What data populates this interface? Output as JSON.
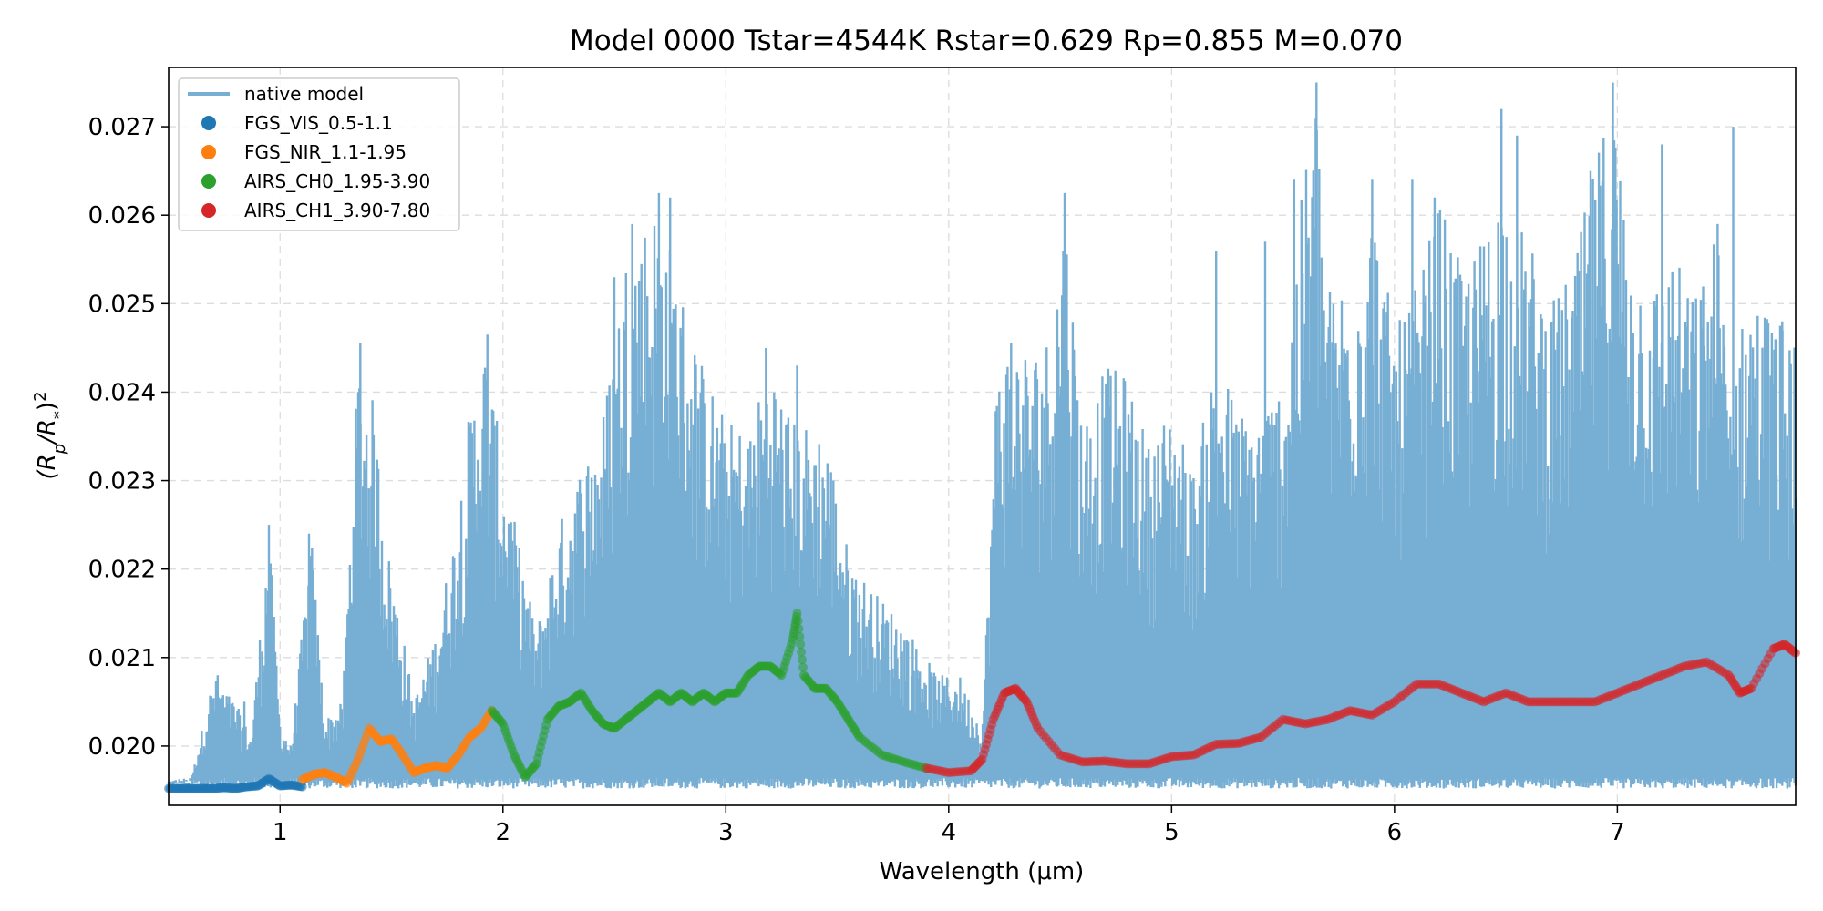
{
  "chart_data": {
    "type": "line+scatter",
    "title": "Model 0000  Tstar=4544K Rstar=0.629 Rp=0.855 M=0.070",
    "xlabel": "Wavelength (μm)",
    "ylabel_parts": {
      "base": "(R",
      "sub1": "p",
      "mid": "/R",
      "sub2": "*",
      "close": ")",
      "sup": "2"
    },
    "xlim": [
      0.5,
      7.8
    ],
    "ylim": [
      0.01933,
      0.02767
    ],
    "xticks": [
      1,
      2,
      3,
      4,
      5,
      6,
      7
    ],
    "xtick_labels": [
      "1",
      "2",
      "3",
      "4",
      "5",
      "6",
      "7"
    ],
    "yticks": [
      0.02,
      0.021,
      0.022,
      0.023,
      0.024,
      0.025,
      0.026,
      0.027
    ],
    "ytick_labels": [
      "0.020",
      "0.021",
      "0.022",
      "0.023",
      "0.024",
      "0.025",
      "0.026",
      "0.027"
    ],
    "grid": true,
    "legend_position": "top-left",
    "native_model": {
      "name": "native model",
      "color": "#77aed4",
      "baseline": 0.01955,
      "envelope": [
        [
          0.5,
          0.01955
        ],
        [
          0.6,
          0.0196
        ],
        [
          0.7,
          0.0208
        ],
        [
          0.8,
          0.0205
        ],
        [
          0.87,
          0.0201
        ],
        [
          0.95,
          0.0225
        ],
        [
          1.0,
          0.0203
        ],
        [
          1.05,
          0.02
        ],
        [
          1.14,
          0.0224
        ],
        [
          1.2,
          0.0203
        ],
        [
          1.28,
          0.0205
        ],
        [
          1.35,
          0.0244
        ],
        [
          1.42,
          0.0239
        ],
        [
          1.48,
          0.0223
        ],
        [
          1.55,
          0.0213
        ],
        [
          1.6,
          0.0205
        ],
        [
          1.7,
          0.0213
        ],
        [
          1.78,
          0.0224
        ],
        [
          1.85,
          0.0238
        ],
        [
          1.92,
          0.0246
        ],
        [
          2.0,
          0.0232
        ],
        [
          2.08,
          0.0222
        ],
        [
          2.15,
          0.0213
        ],
        [
          2.25,
          0.0225
        ],
        [
          2.35,
          0.0232
        ],
        [
          2.45,
          0.0238
        ],
        [
          2.55,
          0.0256
        ],
        [
          2.6,
          0.0259
        ],
        [
          2.7,
          0.0262
        ],
        [
          2.8,
          0.0252
        ],
        [
          2.9,
          0.0243
        ],
        [
          3.0,
          0.0237
        ],
        [
          3.1,
          0.0236
        ],
        [
          3.2,
          0.0244
        ],
        [
          3.3,
          0.0237
        ],
        [
          3.45,
          0.0236
        ],
        [
          3.55,
          0.0222
        ],
        [
          3.65,
          0.0218
        ],
        [
          3.8,
          0.0214
        ],
        [
          3.95,
          0.0208
        ],
        [
          4.05,
          0.0208
        ],
        [
          4.15,
          0.0202
        ],
        [
          4.22,
          0.0245
        ],
        [
          4.3,
          0.0246
        ],
        [
          4.38,
          0.0245
        ],
        [
          4.45,
          0.0247
        ],
        [
          4.52,
          0.0262
        ],
        [
          4.6,
          0.0237
        ],
        [
          4.7,
          0.0243
        ],
        [
          4.8,
          0.0242
        ],
        [
          4.9,
          0.0234
        ],
        [
          5.0,
          0.0239
        ],
        [
          5.1,
          0.0231
        ],
        [
          5.2,
          0.0245
        ],
        [
          5.3,
          0.0238
        ],
        [
          5.4,
          0.0238
        ],
        [
          5.5,
          0.0242
        ],
        [
          5.6,
          0.0266
        ],
        [
          5.65,
          0.0275
        ],
        [
          5.7,
          0.0252
        ],
        [
          5.8,
          0.0254
        ],
        [
          5.9,
          0.0262
        ],
        [
          6.0,
          0.0247
        ],
        [
          6.1,
          0.0252
        ],
        [
          6.2,
          0.0262
        ],
        [
          6.3,
          0.0254
        ],
        [
          6.4,
          0.0258
        ],
        [
          6.48,
          0.0265
        ],
        [
          6.55,
          0.0259
        ],
        [
          6.6,
          0.0258
        ],
        [
          6.7,
          0.025
        ],
        [
          6.8,
          0.0254
        ],
        [
          6.9,
          0.0266
        ],
        [
          6.98,
          0.0275
        ],
        [
          7.05,
          0.0258
        ],
        [
          7.15,
          0.0252
        ],
        [
          7.25,
          0.0256
        ],
        [
          7.35,
          0.0251
        ],
        [
          7.45,
          0.0259
        ],
        [
          7.5,
          0.0242
        ],
        [
          7.6,
          0.0252
        ],
        [
          7.7,
          0.0249
        ],
        [
          7.8,
          0.0247
        ]
      ],
      "spikes": [
        [
          0.72,
          0.0208
        ],
        [
          0.84,
          0.0205
        ],
        [
          0.95,
          0.0225
        ],
        [
          1.13,
          0.0224
        ],
        [
          1.36,
          0.02455
        ],
        [
          1.93,
          0.02465
        ],
        [
          2.5,
          0.0253
        ],
        [
          2.58,
          0.0259
        ],
        [
          2.7,
          0.02625
        ],
        [
          2.75,
          0.0262
        ],
        [
          3.18,
          0.0245
        ],
        [
          3.32,
          0.0243
        ],
        [
          4.28,
          0.02455
        ],
        [
          4.52,
          0.02625
        ],
        [
          5.2,
          0.0256
        ],
        [
          5.42,
          0.0257
        ],
        [
          5.55,
          0.0264
        ],
        [
          5.65,
          0.0275
        ],
        [
          5.9,
          0.0264
        ],
        [
          6.08,
          0.0264
        ],
        [
          6.18,
          0.0262
        ],
        [
          6.48,
          0.0272
        ],
        [
          6.55,
          0.0269
        ],
        [
          6.88,
          0.0265
        ],
        [
          6.98,
          0.0275
        ],
        [
          7.2,
          0.0268
        ],
        [
          7.45,
          0.0259
        ],
        [
          7.52,
          0.027
        ],
        [
          7.74,
          0.0248
        ]
      ]
    },
    "series": [
      {
        "name": "FGS_VIS_0.5-1.1",
        "color": "#1f77b4",
        "x": [
          0.5,
          0.55,
          0.6,
          0.65,
          0.7,
          0.75,
          0.8,
          0.85,
          0.9,
          0.95,
          1.0,
          1.05,
          1.1
        ],
        "y": [
          0.01952,
          0.01952,
          0.01952,
          0.01952,
          0.01952,
          0.01953,
          0.01952,
          0.01954,
          0.01955,
          0.01963,
          0.01955,
          0.01956,
          0.01954
        ]
      },
      {
        "name": "FGS_NIR_1.1-1.95",
        "color": "#ff7f0e",
        "x": [
          1.1,
          1.15,
          1.2,
          1.25,
          1.3,
          1.35,
          1.4,
          1.45,
          1.5,
          1.55,
          1.6,
          1.65,
          1.7,
          1.75,
          1.8,
          1.85,
          1.9,
          1.95
        ],
        "y": [
          0.01962,
          0.01968,
          0.0197,
          0.01965,
          0.01958,
          0.01985,
          0.0202,
          0.02005,
          0.02008,
          0.0199,
          0.0197,
          0.01975,
          0.01978,
          0.01975,
          0.0199,
          0.0201,
          0.0202,
          0.0204
        ]
      },
      {
        "name": "AIRS_CH0_1.95-3.90",
        "color": "#2ca02c",
        "x": [
          1.95,
          2.0,
          2.05,
          2.1,
          2.15,
          2.2,
          2.25,
          2.3,
          2.35,
          2.4,
          2.45,
          2.5,
          2.55,
          2.6,
          2.65,
          2.7,
          2.75,
          2.8,
          2.85,
          2.9,
          2.95,
          3.0,
          3.05,
          3.1,
          3.15,
          3.2,
          3.25,
          3.3,
          3.32,
          3.35,
          3.4,
          3.45,
          3.5,
          3.55,
          3.6,
          3.7,
          3.8,
          3.9
        ],
        "y": [
          0.0204,
          0.02025,
          0.0199,
          0.01965,
          0.0198,
          0.0203,
          0.02045,
          0.0205,
          0.0206,
          0.0204,
          0.02025,
          0.0202,
          0.0203,
          0.0204,
          0.0205,
          0.0206,
          0.0205,
          0.0206,
          0.0205,
          0.0206,
          0.0205,
          0.0206,
          0.0206,
          0.0208,
          0.0209,
          0.0209,
          0.0208,
          0.0212,
          0.0215,
          0.0208,
          0.02065,
          0.02065,
          0.0205,
          0.0203,
          0.0201,
          0.0199,
          0.01982,
          0.01975
        ]
      },
      {
        "name": "AIRS_CH1_3.90-7.80",
        "color": "#d62728",
        "x": [
          3.9,
          4.0,
          4.1,
          4.15,
          4.2,
          4.25,
          4.3,
          4.35,
          4.4,
          4.5,
          4.6,
          4.7,
          4.8,
          4.9,
          5.0,
          5.1,
          5.2,
          5.3,
          5.4,
          5.5,
          5.6,
          5.7,
          5.8,
          5.9,
          6.0,
          6.1,
          6.2,
          6.3,
          6.4,
          6.5,
          6.6,
          6.7,
          6.8,
          6.9,
          7.0,
          7.1,
          7.2,
          7.3,
          7.4,
          7.5,
          7.55,
          7.6,
          7.7,
          7.75,
          7.8
        ],
        "y": [
          0.01975,
          0.0197,
          0.01972,
          0.01985,
          0.0203,
          0.0206,
          0.02065,
          0.0205,
          0.0202,
          0.0199,
          0.01982,
          0.01983,
          0.0198,
          0.0198,
          0.01988,
          0.0199,
          0.02002,
          0.02003,
          0.0201,
          0.0203,
          0.02025,
          0.0203,
          0.0204,
          0.02035,
          0.0205,
          0.0207,
          0.0207,
          0.0206,
          0.0205,
          0.0206,
          0.0205,
          0.0205,
          0.0205,
          0.0205,
          0.0206,
          0.0207,
          0.0208,
          0.0209,
          0.02095,
          0.0208,
          0.0206,
          0.02065,
          0.0211,
          0.02115,
          0.02105
        ]
      }
    ]
  }
}
